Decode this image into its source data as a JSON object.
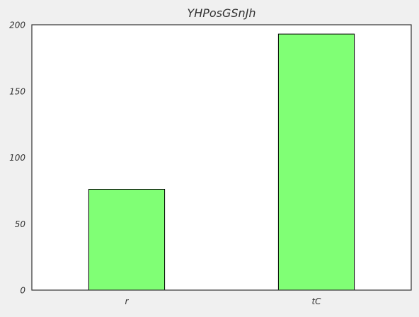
{
  "chart_data": {
    "type": "bar",
    "title": "YHPosGSnJh",
    "xlabel": "",
    "ylabel": "",
    "categories": [
      "r",
      "tC"
    ],
    "values": [
      76,
      193
    ],
    "ylim": [
      0,
      200
    ],
    "yticks": [
      0,
      50,
      100,
      150,
      200
    ],
    "grid": false,
    "legend": "none",
    "colors": {
      "bar_fill": "#80ff75",
      "bar_edge": "#000000",
      "plot_background": "#ffffff",
      "figure_background": "#f0f0f0",
      "axis": "#333333",
      "text": "#333333"
    }
  }
}
